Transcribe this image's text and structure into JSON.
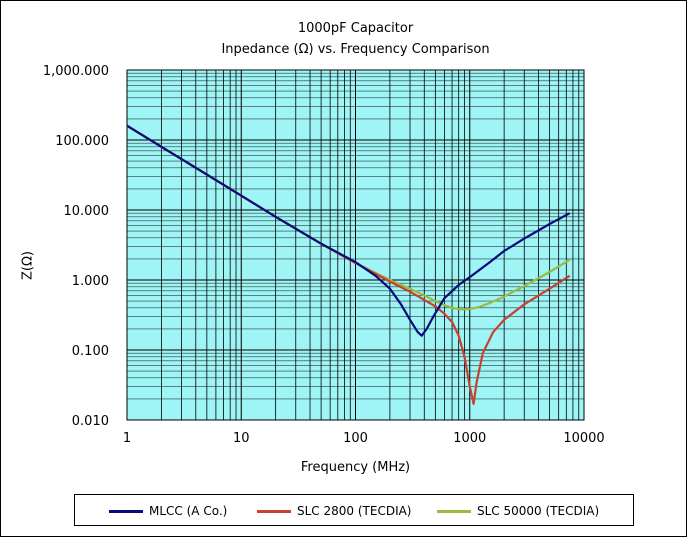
{
  "chart_data": {
    "type": "line",
    "title": "1000pF Capacitor",
    "subtitle": "Inpedance (Ω) vs. Frequency Comparison",
    "xlabel": "Frequency (MHz)",
    "ylabel": "Z(Ω)",
    "x_scale": "log",
    "y_scale": "log",
    "xlim": [
      1,
      10000
    ],
    "ylim": [
      0.01,
      1000
    ],
    "x_ticks": [
      "1",
      "10",
      "100",
      "1000",
      "10000"
    ],
    "y_ticks": [
      "0.010",
      "0.100",
      "1.000",
      "10.000",
      "100.000",
      "1,000.000"
    ],
    "grid": true,
    "plot_background": "#9ff5f5",
    "legend_position": "bottom",
    "series": [
      {
        "name": "MLCC (A Co.)",
        "color": "#0a0a7a",
        "x": [
          1,
          2,
          5,
          10,
          20,
          50,
          100,
          150,
          200,
          250,
          300,
          350,
          380,
          420,
          480,
          600,
          800,
          1000,
          1500,
          2000,
          3000,
          5000,
          7500
        ],
        "y": [
          160,
          80,
          32,
          16,
          8,
          3.3,
          1.8,
          1.15,
          0.75,
          0.45,
          0.27,
          0.18,
          0.16,
          0.2,
          0.3,
          0.55,
          0.85,
          1.1,
          1.8,
          2.6,
          3.9,
          6.3,
          9
        ]
      },
      {
        "name": "SLC 2800 (TECDIA)",
        "color": "#c84030",
        "x": [
          1,
          2,
          5,
          10,
          20,
          50,
          100,
          200,
          300,
          400,
          500,
          600,
          700,
          800,
          900,
          1000,
          1080,
          1150,
          1300,
          1600,
          2000,
          3000,
          5000,
          7500
        ],
        "y": [
          160,
          80,
          32,
          16,
          8,
          3.3,
          1.75,
          0.95,
          0.68,
          0.52,
          0.42,
          0.33,
          0.25,
          0.16,
          0.08,
          0.03,
          0.017,
          0.035,
          0.09,
          0.18,
          0.27,
          0.45,
          0.75,
          1.15
        ]
      },
      {
        "name": "SLC 50000 (TECDIA)",
        "color": "#99bb44",
        "x": [
          1,
          2,
          5,
          10,
          20,
          50,
          100,
          200,
          300,
          400,
          500,
          600,
          700,
          800,
          900,
          1000,
          1200,
          1500,
          2000,
          3000,
          5000,
          7500
        ],
        "y": [
          160,
          80,
          32,
          16,
          8,
          3.3,
          1.75,
          1.0,
          0.75,
          0.6,
          0.5,
          0.44,
          0.4,
          0.385,
          0.38,
          0.385,
          0.41,
          0.47,
          0.58,
          0.82,
          1.3,
          1.95
        ]
      }
    ]
  }
}
